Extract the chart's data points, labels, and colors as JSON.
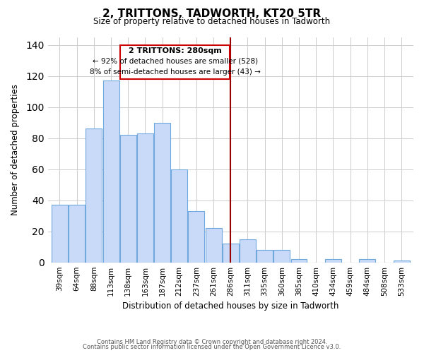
{
  "title": "2, TRITTONS, TADWORTH, KT20 5TR",
  "subtitle": "Size of property relative to detached houses in Tadworth",
  "xlabel": "Distribution of detached houses by size in Tadworth",
  "ylabel": "Number of detached properties",
  "bar_labels": [
    "39sqm",
    "64sqm",
    "88sqm",
    "113sqm",
    "138sqm",
    "163sqm",
    "187sqm",
    "212sqm",
    "237sqm",
    "261sqm",
    "286sqm",
    "311sqm",
    "335sqm",
    "360sqm",
    "385sqm",
    "410sqm",
    "434sqm",
    "459sqm",
    "484sqm",
    "508sqm",
    "533sqm"
  ],
  "bar_values": [
    37,
    37,
    86,
    117,
    82,
    83,
    90,
    60,
    33,
    22,
    12,
    15,
    8,
    8,
    2,
    0,
    2,
    0,
    2,
    0,
    1
  ],
  "bar_color": "#c9daf8",
  "bar_edge_color": "#6fa8dc",
  "vline_color": "#990000",
  "annotation_title": "2 TRITTONS: 280sqm",
  "annotation_line1": "← 92% of detached houses are smaller (528)",
  "annotation_line2": "8% of semi-detached houses are larger (43) →",
  "annotation_box_edge": "#cc0000",
  "ylim": [
    0,
    145
  ],
  "yticks": [
    0,
    20,
    40,
    60,
    80,
    100,
    120,
    140
  ],
  "footer1": "Contains HM Land Registry data © Crown copyright and database right 2024.",
  "footer2": "Contains public sector information licensed under the Open Government Licence v3.0.",
  "bg_color": "#ffffff",
  "grid_color": "#cccccc"
}
